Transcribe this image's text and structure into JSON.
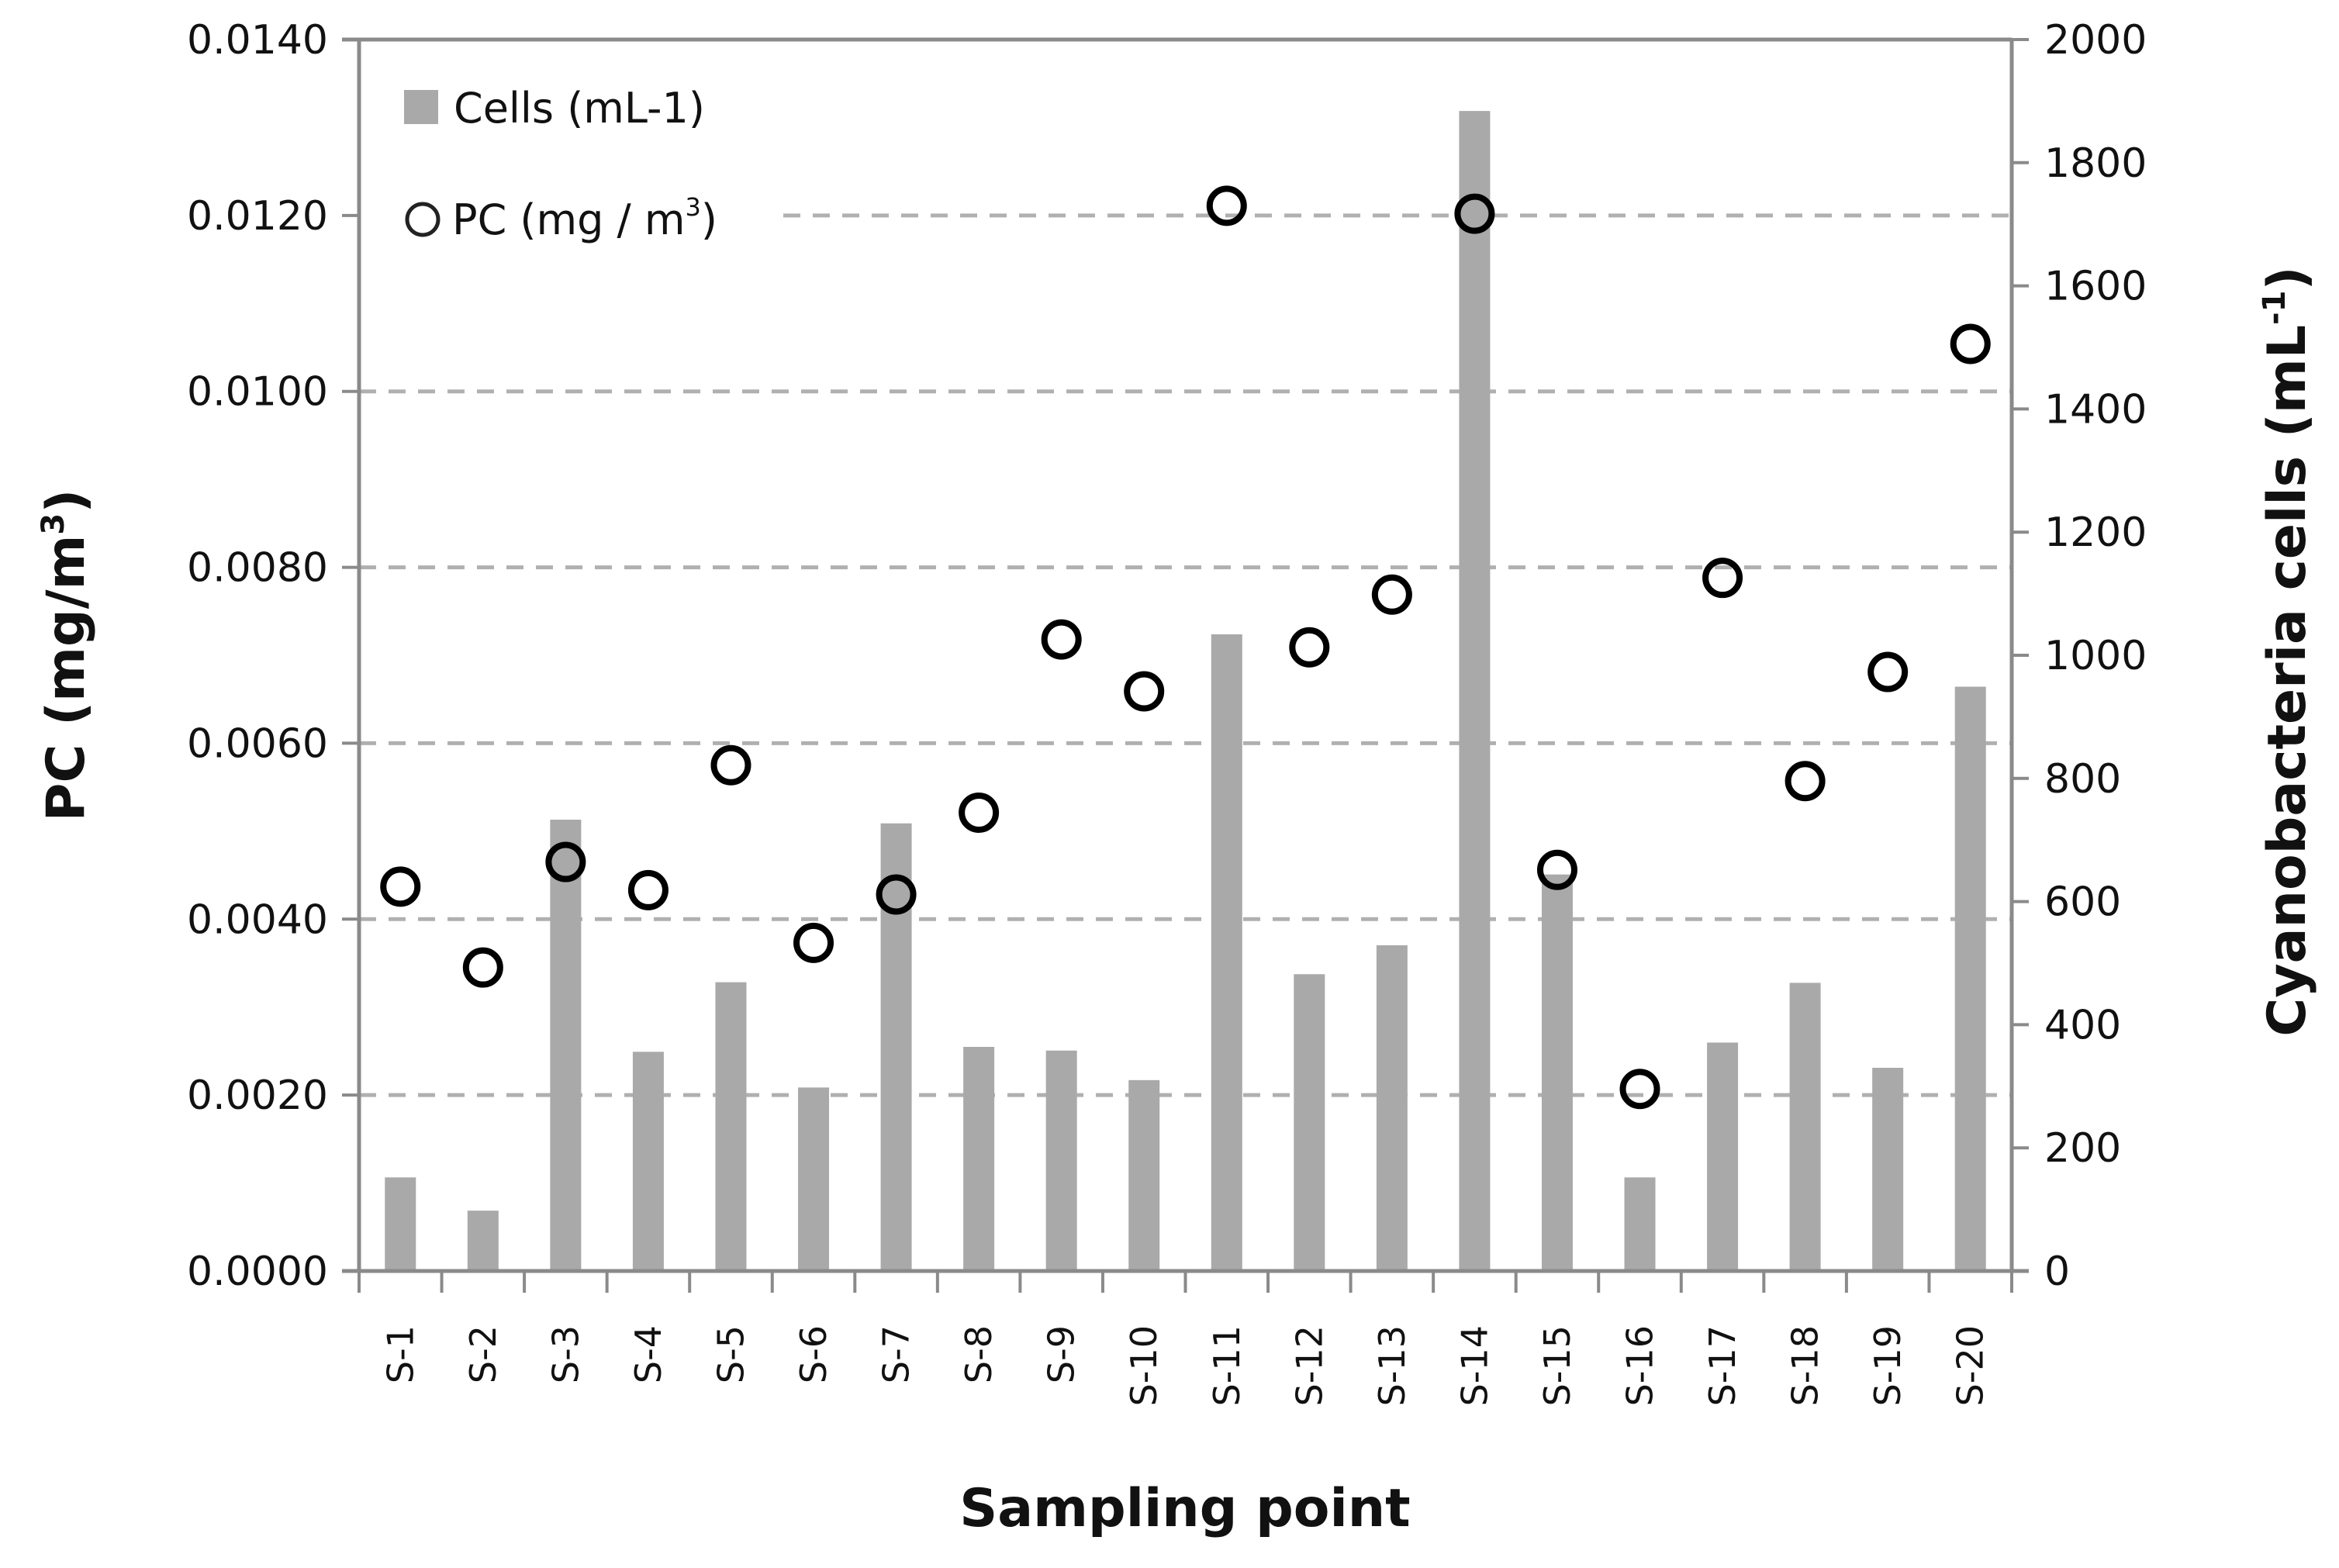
{
  "chart_data": {
    "type": "bar",
    "title": "",
    "xlabel": "Sampling point",
    "ylabel_left": "PC (mg/m3)",
    "ylabel_left_parts": {
      "main": "PC (mg/m",
      "sup": "3",
      "end": ")"
    },
    "ylabel_right": "Cyanobacteria   cells (mL-1)",
    "ylabel_right_parts": {
      "main": "Cyanobacteria   cells (mL",
      "sup": "-1",
      "end": ")"
    },
    "categories": [
      "S-1",
      "S-2",
      "S-3",
      "S-4",
      "S-5",
      "S-6",
      "S-7",
      "S-8",
      "S-9",
      "S-10",
      "S-11",
      "S-12",
      "S-13",
      "S-14",
      "S-15",
      "S-16",
      "S-17",
      "S-18",
      "S-19",
      "S-20"
    ],
    "series": [
      {
        "name": "Cells (mL-1)",
        "type": "bar",
        "axis": "right",
        "color": "#a9a9a9",
        "values": [
          152,
          98,
          733,
          356,
          469,
          298,
          727,
          364,
          358,
          310,
          1034,
          482,
          529,
          1884,
          644,
          152,
          371,
          468,
          330,
          949
        ]
      },
      {
        "name": "PC (mg/m3)",
        "legend_parts": {
          "main": "PC (mg / m",
          "sup": "3",
          "end": ")"
        },
        "type": "scatter",
        "axis": "left",
        "marker": "open-circle",
        "color": "#000000",
        "values": [
          0.00437,
          0.00345,
          0.00465,
          0.00433,
          0.00575,
          0.00373,
          0.00428,
          0.00521,
          0.00718,
          0.00659,
          0.01211,
          0.00709,
          0.00769,
          0.01202,
          0.00456,
          0.00207,
          0.00788,
          0.00557,
          0.00681,
          0.01054
        ]
      }
    ],
    "ylim_left": [
      0,
      0.014
    ],
    "ylim_right": [
      0,
      2000
    ],
    "yticks_left": [
      "0.0000",
      "0.0020",
      "0.0040",
      "0.0060",
      "0.0080",
      "0.0100",
      "0.0120",
      "0.0140"
    ],
    "yticks_right": [
      "0",
      "200",
      "400",
      "600",
      "800",
      "1000",
      "1200",
      "1400",
      "1600",
      "1800",
      "2000"
    ],
    "grid": "horizontal dashed at left-axis ticks",
    "legend": {
      "position": "top-left",
      "entries": [
        "Cells (mL-1)",
        "PC (mg/m3)"
      ]
    }
  }
}
